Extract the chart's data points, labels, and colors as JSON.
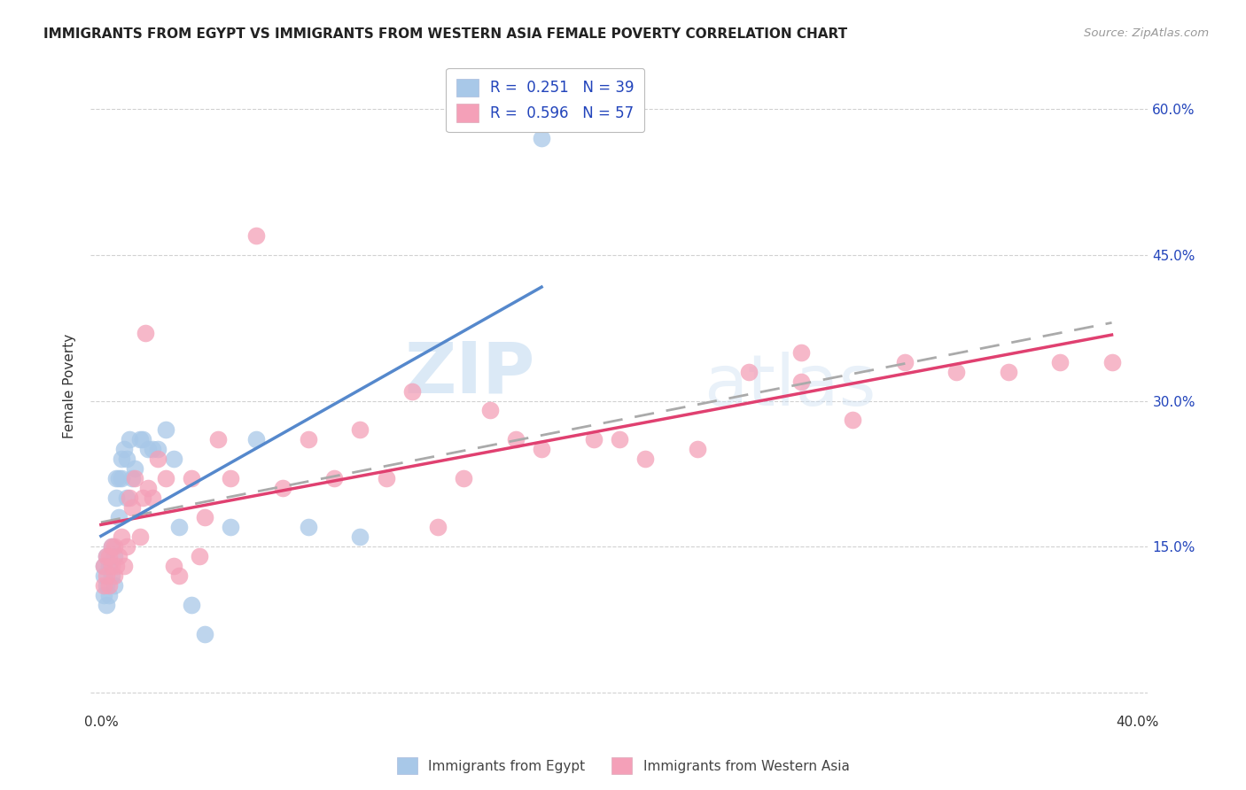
{
  "title": "IMMIGRANTS FROM EGYPT VS IMMIGRANTS FROM WESTERN ASIA FEMALE POVERTY CORRELATION CHART",
  "source": "Source: ZipAtlas.com",
  "ylabel": "Female Poverty",
  "xlim": [
    -0.004,
    0.404
  ],
  "ylim": [
    -0.02,
    0.65
  ],
  "egypt_R": "0.251",
  "egypt_N": "39",
  "western_asia_R": "0.596",
  "western_asia_N": "57",
  "egypt_color": "#a8c8e8",
  "western_asia_color": "#f4a0b8",
  "egypt_line_color": "#5588cc",
  "western_asia_line_color": "#e04070",
  "trend_line_color": "#aaaaaa",
  "background_color": "#ffffff",
  "grid_color": "#cccccc",
  "legend_text_color": "#2244bb",
  "watermark_zip": "ZIP",
  "watermark_atlas": "atlas",
  "egypt_x": [
    0.001,
    0.001,
    0.001,
    0.002,
    0.002,
    0.002,
    0.003,
    0.003,
    0.004,
    0.004,
    0.005,
    0.005,
    0.006,
    0.006,
    0.007,
    0.007,
    0.008,
    0.008,
    0.009,
    0.01,
    0.01,
    0.011,
    0.012,
    0.013,
    0.015,
    0.016,
    0.018,
    0.02,
    0.022,
    0.025,
    0.028,
    0.03,
    0.035,
    0.04,
    0.05,
    0.06,
    0.08,
    0.1,
    0.17
  ],
  "egypt_y": [
    0.1,
    0.12,
    0.13,
    0.09,
    0.11,
    0.14,
    0.1,
    0.13,
    0.12,
    0.15,
    0.11,
    0.14,
    0.2,
    0.22,
    0.22,
    0.18,
    0.24,
    0.22,
    0.25,
    0.2,
    0.24,
    0.26,
    0.22,
    0.23,
    0.26,
    0.26,
    0.25,
    0.25,
    0.25,
    0.27,
    0.24,
    0.17,
    0.09,
    0.06,
    0.17,
    0.26,
    0.17,
    0.16,
    0.57
  ],
  "western_asia_x": [
    0.001,
    0.001,
    0.002,
    0.002,
    0.003,
    0.003,
    0.004,
    0.004,
    0.005,
    0.005,
    0.006,
    0.007,
    0.008,
    0.009,
    0.01,
    0.011,
    0.012,
    0.013,
    0.015,
    0.016,
    0.017,
    0.018,
    0.02,
    0.022,
    0.025,
    0.028,
    0.03,
    0.035,
    0.038,
    0.04,
    0.045,
    0.05,
    0.06,
    0.07,
    0.08,
    0.09,
    0.1,
    0.11,
    0.12,
    0.13,
    0.14,
    0.15,
    0.16,
    0.17,
    0.19,
    0.21,
    0.23,
    0.25,
    0.27,
    0.29,
    0.31,
    0.33,
    0.35,
    0.37,
    0.39,
    0.27,
    0.2
  ],
  "western_asia_y": [
    0.11,
    0.13,
    0.12,
    0.14,
    0.11,
    0.14,
    0.13,
    0.15,
    0.12,
    0.15,
    0.13,
    0.14,
    0.16,
    0.13,
    0.15,
    0.2,
    0.19,
    0.22,
    0.16,
    0.2,
    0.37,
    0.21,
    0.2,
    0.24,
    0.22,
    0.13,
    0.12,
    0.22,
    0.14,
    0.18,
    0.26,
    0.22,
    0.47,
    0.21,
    0.26,
    0.22,
    0.27,
    0.22,
    0.31,
    0.17,
    0.22,
    0.29,
    0.26,
    0.25,
    0.26,
    0.24,
    0.25,
    0.33,
    0.32,
    0.28,
    0.34,
    0.33,
    0.33,
    0.34,
    0.34,
    0.35,
    0.26
  ]
}
